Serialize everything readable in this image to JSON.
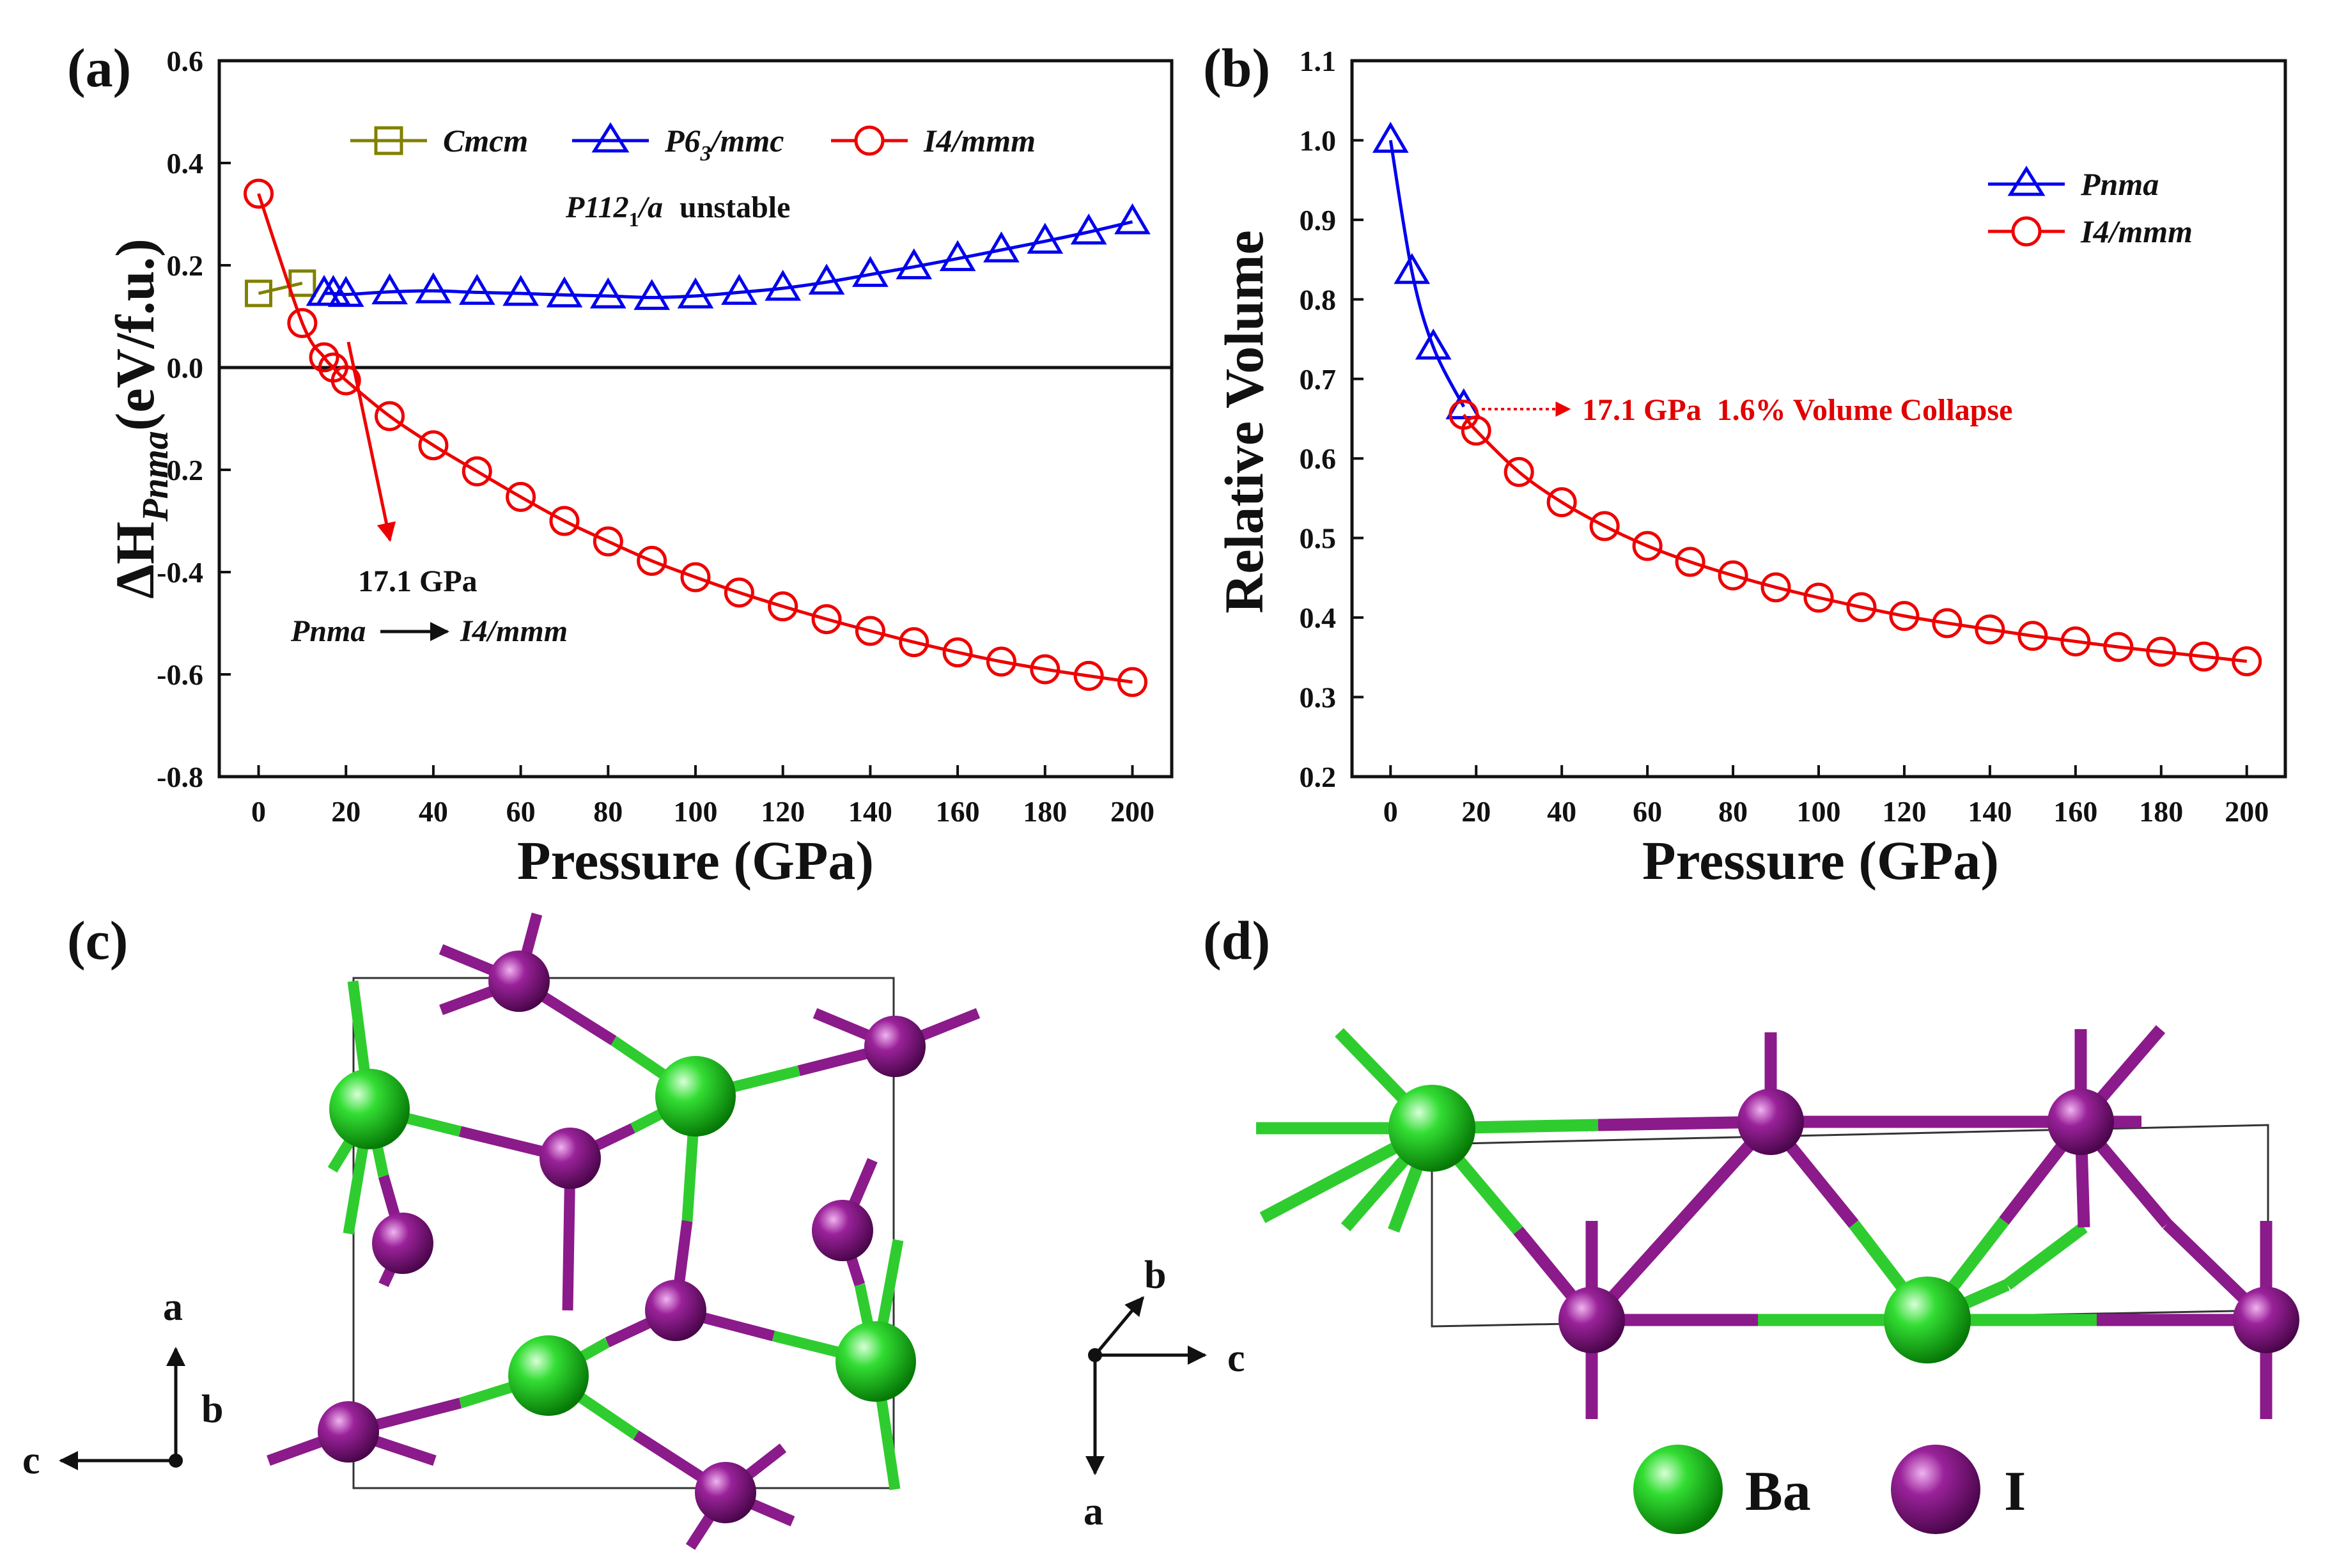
{
  "panel_labels": {
    "a": "(a)",
    "b": "(b)",
    "c": "(c)",
    "d": "(d)"
  },
  "colors": {
    "cmcm": "#808000",
    "p63mmc": "#0000ee",
    "i4mmm": "#ee0000",
    "pnma": "#0000ee",
    "ba": "#22cc22",
    "iodine": "#8b1a8b"
  },
  "chart_data": [
    {
      "type": "line",
      "panel": "(a)",
      "xlabel": "Pressure (GPa)",
      "ylabel": "ΔH",
      "ylabel_sub": "Pnma",
      "ylabel_unit": "(eV/f.u.)",
      "xlim": [
        -9,
        209
      ],
      "ylim": [
        -0.8,
        0.6
      ],
      "xticks": [
        0,
        20,
        40,
        60,
        80,
        100,
        120,
        140,
        160,
        180,
        200
      ],
      "yticks": [
        "0.6",
        "0.4",
        "0.2",
        "0.0",
        "-0.2",
        "-0.4",
        "-0.6",
        "-0.8"
      ],
      "series": [
        {
          "name": "Cmcm",
          "marker": "square",
          "x": [
            0,
            10
          ],
          "y": [
            0.145,
            0.165
          ]
        },
        {
          "name": "P6",
          "name_sub": "3",
          "name_tail": "/mmc",
          "marker": "triangle",
          "x": [
            15,
            17.1,
            20,
            30,
            40,
            50,
            60,
            70,
            80,
            90,
            100,
            110,
            120,
            130,
            140,
            150,
            160,
            170,
            180,
            190,
            200
          ],
          "y": [
            0.145,
            0.145,
            0.143,
            0.148,
            0.15,
            0.147,
            0.145,
            0.142,
            0.14,
            0.137,
            0.14,
            0.147,
            0.155,
            0.167,
            0.182,
            0.197,
            0.213,
            0.23,
            0.247,
            0.265,
            0.285
          ]
        },
        {
          "name": "I4/mmm",
          "marker": "circle",
          "x": [
            0,
            10,
            15,
            17.1,
            20,
            30,
            40,
            50,
            60,
            70,
            80,
            90,
            100,
            110,
            120,
            130,
            140,
            150,
            160,
            170,
            180,
            190,
            200
          ],
          "y": [
            0.34,
            0.087,
            0.02,
            0.0,
            -0.025,
            -0.095,
            -0.152,
            -0.203,
            -0.253,
            -0.3,
            -0.34,
            -0.378,
            -0.41,
            -0.44,
            -0.467,
            -0.492,
            -0.515,
            -0.537,
            -0.557,
            -0.575,
            -0.59,
            -0.603,
            -0.615
          ]
        }
      ],
      "legend": [
        "Cmcm",
        "P63/mmc",
        "I4/mmm"
      ],
      "note_italic": "P112",
      "note_sub": "1",
      "note_tail": "/a",
      "note_rest": "unstable",
      "annotation_pressure": "17.1 GPa",
      "annotation_from": "Pnma",
      "annotation_to": "I4/mmm"
    },
    {
      "type": "line",
      "panel": "(b)",
      "xlabel": "Pressure (GPa)",
      "ylabel": "Relative Volume",
      "xlim": [
        -9,
        209
      ],
      "ylim": [
        0.2,
        1.1
      ],
      "xticks": [
        0,
        20,
        40,
        60,
        80,
        100,
        120,
        140,
        160,
        180,
        200
      ],
      "yticks": [
        "1.1",
        "1.0",
        "0.9",
        "0.8",
        "0.7",
        "0.6",
        "0.5",
        "0.4",
        "0.3",
        "0.2"
      ],
      "series": [
        {
          "name": "Pnma",
          "marker": "triangle",
          "x": [
            0,
            5,
            10,
            17.1
          ],
          "y": [
            1.0,
            0.835,
            0.74,
            0.665
          ]
        },
        {
          "name": "I4/mmm",
          "marker": "circle",
          "x": [
            17.1,
            20,
            30,
            40,
            50,
            60,
            70,
            80,
            90,
            100,
            110,
            120,
            130,
            140,
            150,
            160,
            170,
            180,
            190,
            200
          ],
          "y": [
            0.655,
            0.635,
            0.583,
            0.545,
            0.515,
            0.49,
            0.47,
            0.453,
            0.438,
            0.425,
            0.413,
            0.402,
            0.393,
            0.385,
            0.377,
            0.37,
            0.363,
            0.357,
            0.351,
            0.345
          ]
        }
      ],
      "legend": [
        "Pnma",
        "I4/mmm"
      ],
      "annotation": "17.1 GPa  1.6% Volume Collapse"
    }
  ],
  "structure_c": {
    "axes": [
      "a",
      "b",
      "c"
    ]
  },
  "structure_d": {
    "axes": [
      "b",
      "c",
      "a"
    ],
    "legend": [
      "Ba",
      "I"
    ]
  }
}
